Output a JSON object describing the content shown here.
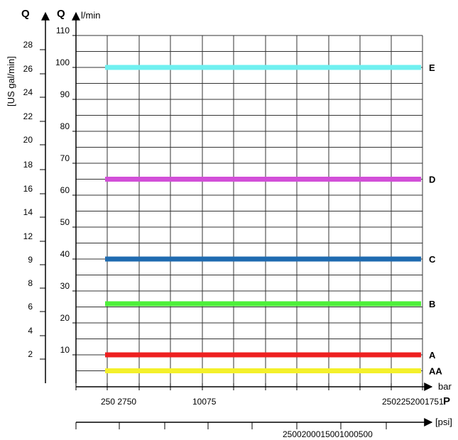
{
  "chart_data": {
    "type": "line",
    "left_axis_symbol": "Q",
    "left_axis_unit": "[US gal/min]",
    "left_axis_ticks": [
      "2",
      "4",
      "6",
      "8",
      "9",
      "12",
      "14",
      "16",
      "18",
      "20",
      "22",
      "24",
      "26",
      "28"
    ],
    "y_axis_symbol": "Q",
    "ylabel": "l/min",
    "ylim": [
      0,
      110
    ],
    "y_ticks": [
      10,
      20,
      30,
      40,
      50,
      60,
      70,
      80,
      90,
      100,
      110
    ],
    "x_axis_symbol": "P",
    "xlabel": "bar",
    "x_tick_labels": [
      "250 2750",
      "10075",
      "2502252001751"
    ],
    "psi_label": "[psi]",
    "psi_tick_labels": [
      "2500200015001000500"
    ],
    "grid": true,
    "series": [
      {
        "name": "E",
        "value": 100,
        "color": "#6ff0f0"
      },
      {
        "name": "D",
        "value": 65,
        "color": "#d24fd8"
      },
      {
        "name": "C",
        "value": 40,
        "color": "#1f6bb0"
      },
      {
        "name": "B",
        "value": 26,
        "color": "#4ef03a"
      },
      {
        "name": "A",
        "value": 10,
        "color": "#ee2020"
      },
      {
        "name": "AA",
        "value": 5,
        "color": "#f4f02a"
      }
    ]
  }
}
